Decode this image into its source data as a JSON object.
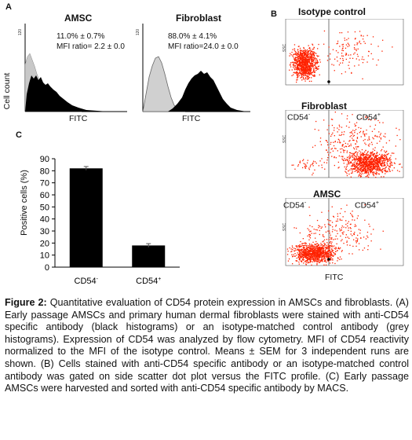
{
  "panel_a": {
    "letter": "A",
    "y_label": "Cell count",
    "y_tick": "120",
    "histograms": [
      {
        "title": "AMSC",
        "stat1": "11.0% ± 0.7%",
        "stat2": "MFI ratio= 2.2 ± 0.0",
        "x_label": "FITC"
      },
      {
        "title": "Fibroblast",
        "stat1": "88.0% ± 4.1%",
        "stat2": "MFI ratio=24.0 ± 0.0",
        "x_label": "FITC"
      }
    ]
  },
  "panel_b": {
    "letter": "B",
    "y_tick_label": "SSC",
    "x_label": "FITC",
    "colors": {
      "dots": "#ff2200"
    },
    "plots": [
      {
        "title": "Isotype control",
        "left_label": "",
        "right_label": ""
      },
      {
        "title": "Fibroblast",
        "left_label": "CD54",
        "right_label": "CD54"
      },
      {
        "title": "AMSC",
        "left_label": "CD54",
        "right_label": "CD54"
      }
    ]
  },
  "panel_c": {
    "letter": "C"
  },
  "chart_data": {
    "type": "bar",
    "categories": [
      "CD54-",
      "CD54+"
    ],
    "category_labels": [
      {
        "base": "CD54",
        "sup": "-"
      },
      {
        "base": "CD54",
        "sup": "+"
      }
    ],
    "values": [
      82,
      18
    ],
    "errors": [
      1.5,
      1.5
    ],
    "ylabel": "Positive cells (%)",
    "ylim": [
      0,
      90
    ],
    "yticks": [
      "0",
      "10",
      "20",
      "30",
      "40",
      "50",
      "60",
      "70",
      "80",
      "90"
    ],
    "colors": {
      "bar": "#000000"
    }
  },
  "caption": {
    "label": "Figure 2:",
    "text": "Quantitative evaluation of CD54 protein expression in AMSCs and fibroblasts. (A) Early passage AMSCs and primary human dermal fibroblasts were stained with anti-CD54 specific antibody (black histograms) or an isotype-matched control antibody (grey histograms). Expression of CD54 was analyzed by flow cytometry. MFI of CD54 reactivity normalized to the MFI of the isotype control. Means ± SEM for 3 independent runs are shown. (B) Cells stained with anti-CD54 specific antibody or an isotype-matched control antibody was gated on side scatter dot plot versus the FITC profile. (C) Early passage AMSCs were harvested and sorted with anti-CD54 specific antibody by MACS."
  }
}
